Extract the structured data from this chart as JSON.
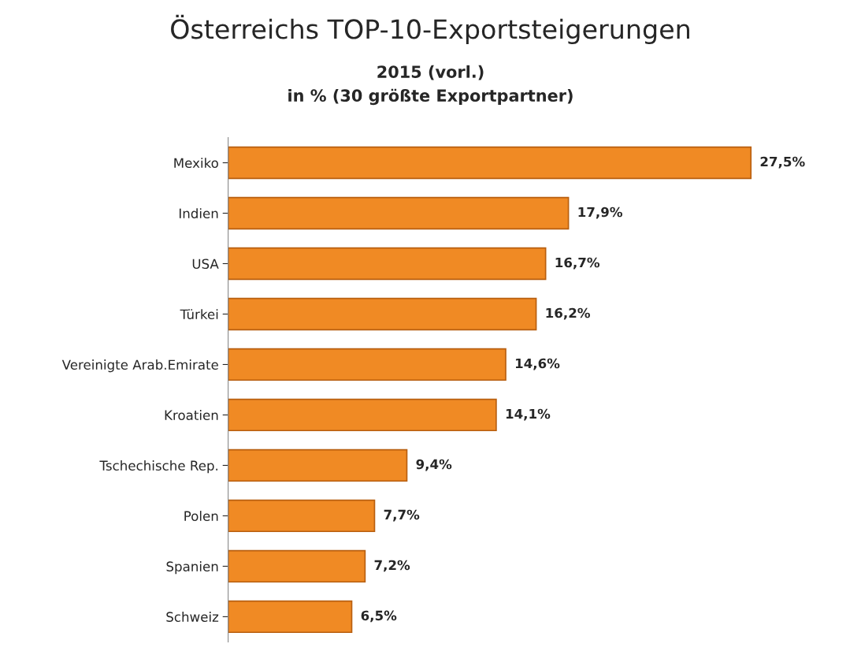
{
  "chart_data": {
    "type": "bar",
    "orientation": "horizontal",
    "title": "Österreichs TOP-10-Exportsteigerungen",
    "subtitle": "2015 (vorl.)\nin % (30 größte Exportpartner)",
    "categories": [
      "Mexiko",
      "Indien",
      "USA",
      "Türkei",
      "Vereinigte Arab.Emirate",
      "Kroatien",
      "Tschechische Rep.",
      "Polen",
      "Spanien",
      "Schweiz"
    ],
    "values": [
      27.5,
      17.9,
      16.7,
      16.2,
      14.6,
      14.1,
      9.4,
      7.7,
      7.2,
      6.5
    ],
    "value_labels": [
      "27,5%",
      "17,9%",
      "16,7%",
      "16,2%",
      "14,6%",
      "14,1%",
      "9,4%",
      "7,7%",
      "7,2%",
      "6,5%"
    ],
    "color": "#f08a24",
    "grid": false,
    "legend": false
  }
}
